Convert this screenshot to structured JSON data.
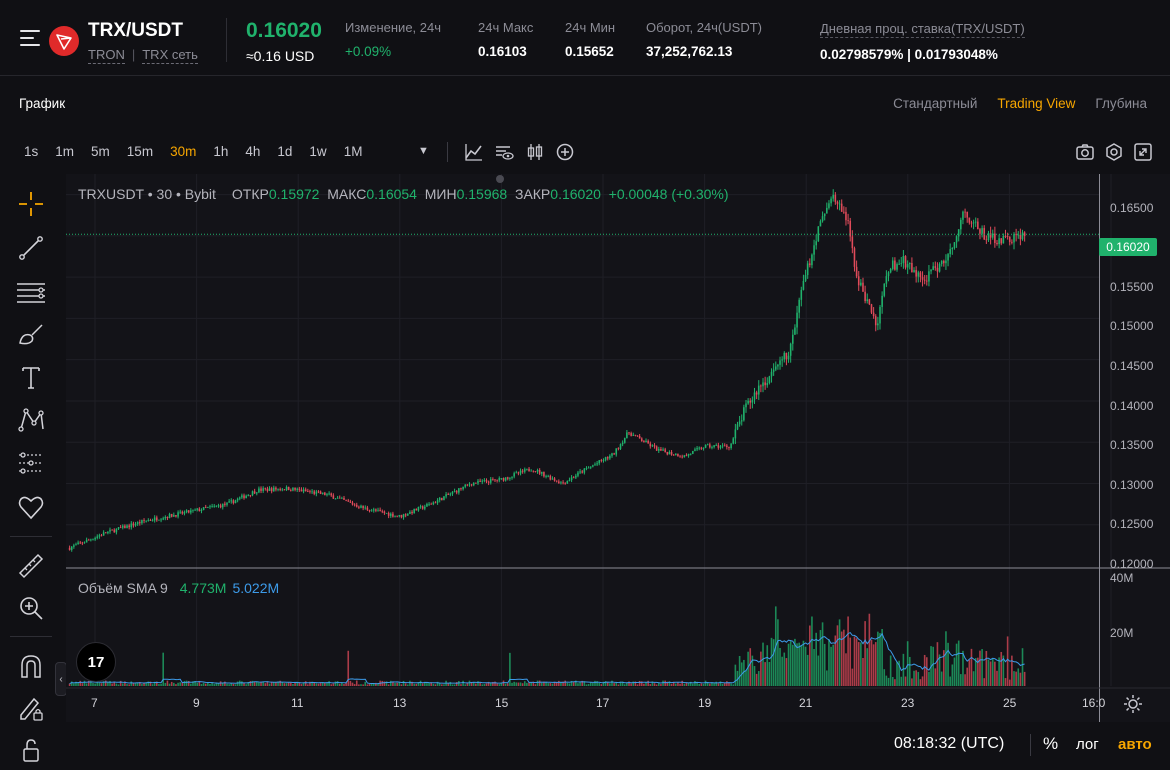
{
  "header": {
    "pair": "TRX/USDT",
    "network_name": "TRON",
    "network_link": "TRX сеть",
    "last_price": "0.16020",
    "last_price_usd": "≈0.16 USD",
    "stats": [
      {
        "label": "Изменение, 24ч",
        "value": "+0.09%",
        "color": "green"
      },
      {
        "label": "24ч Макс",
        "value": "0.16103"
      },
      {
        "label": "24ч Мин",
        "value": "0.15652"
      },
      {
        "label": "Оборот, 24ч(USDT)",
        "value": "37,252,762.13"
      },
      {
        "label": "Дневная проц. ставка(TRX/USDT)",
        "value": "0.02798579% | 0.01793048%"
      }
    ]
  },
  "chart_header": {
    "tab": "График",
    "views": [
      {
        "label": "Стандартный",
        "active": false
      },
      {
        "label": "Trading View",
        "active": true
      },
      {
        "label": "Глубина",
        "active": false
      }
    ]
  },
  "intervals": [
    {
      "label": "1s",
      "active": false
    },
    {
      "label": "1m",
      "active": false
    },
    {
      "label": "5m",
      "active": false
    },
    {
      "label": "15m",
      "active": false
    },
    {
      "label": "30m",
      "active": true
    },
    {
      "label": "1h",
      "active": false
    },
    {
      "label": "4h",
      "active": false
    },
    {
      "label": "1d",
      "active": false
    },
    {
      "label": "1w",
      "active": false
    },
    {
      "label": "1M",
      "active": false
    }
  ],
  "legend": {
    "symbol": "TRXUSDT • 30 • Bybit",
    "open_label": "ОТКР",
    "open": "0.15972",
    "high_label": "МАКС",
    "high": "0.16054",
    "low_label": "МИН",
    "low": "0.15968",
    "close_label": "ЗАКР",
    "close": "0.16020",
    "change": "+0.00048 (+0.30%)"
  },
  "volume_legend": {
    "label": "Объём SMA 9",
    "value1": "4.773M",
    "value2": "5.022M"
  },
  "tv_logo": "17",
  "bottom": {
    "time": "08:18:32 (UTC)",
    "percent": "%",
    "log": "лог",
    "auto": "авто"
  },
  "colors": {
    "up": "#20b26c",
    "down": "#e04b5a",
    "accent": "#f7a600",
    "sma": "#3d9be9"
  },
  "chart_data": {
    "type": "candlestick",
    "interval": "30",
    "last_price_label": "0.16020",
    "y_ticks": [
      "0.16500",
      "0.16000",
      "0.15500",
      "0.15000",
      "0.14500",
      "0.14000",
      "0.13500",
      "0.13000",
      "0.12500",
      "0.12000"
    ],
    "ylim": [
      0.12,
      0.1675
    ],
    "x_ticks": [
      "7",
      "9",
      "11",
      "13",
      "15",
      "17",
      "19",
      "21",
      "23",
      "25",
      "16:0"
    ],
    "volume_ticks": [
      "40M",
      "20M"
    ],
    "price_path_days": [
      6.5,
      7.2,
      8.0,
      8.8,
      9.6,
      10.2,
      10.8,
      11.6,
      12.3,
      13.0,
      13.6,
      14.4,
      15.0,
      15.6,
      16.2,
      16.6,
      17.2,
      17.5,
      18.1,
      18.6,
      19.0,
      19.5,
      19.8,
      20.1,
      20.4,
      20.7,
      20.9,
      21.2,
      21.5,
      21.8,
      22.0,
      22.2,
      22.4,
      22.6,
      22.9,
      23.3,
      23.8,
      24.1,
      24.5,
      24.9,
      25.3
    ],
    "price_path_values": [
      0.1222,
      0.124,
      0.1255,
      0.1265,
      0.1275,
      0.1292,
      0.1294,
      0.1286,
      0.127,
      0.126,
      0.1275,
      0.13,
      0.1305,
      0.1318,
      0.13,
      0.1315,
      0.1335,
      0.1362,
      0.134,
      0.1333,
      0.1345,
      0.1345,
      0.139,
      0.142,
      0.1435,
      0.1465,
      0.153,
      0.16,
      0.165,
      0.162,
      0.155,
      0.152,
      0.149,
      0.156,
      0.157,
      0.1545,
      0.1575,
      0.163,
      0.16,
      0.1595,
      0.1602
    ]
  }
}
